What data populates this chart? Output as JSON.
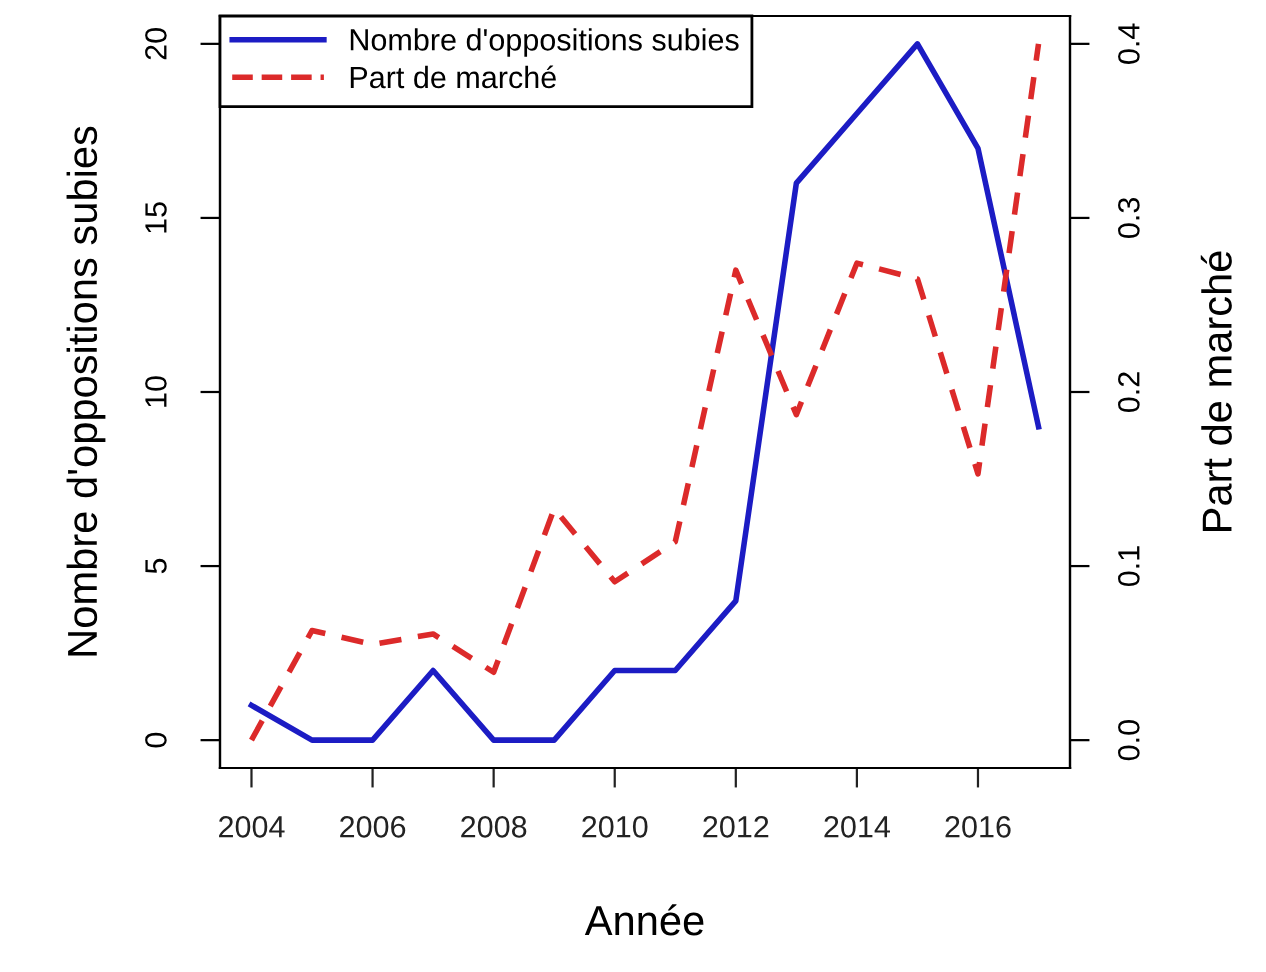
{
  "chart_data": {
    "type": "line",
    "xlabel": "Année",
    "ylabel": "Nombre d'oppositions subies",
    "y2label": "Part de marché",
    "x": [
      2004,
      2005,
      2006,
      2007,
      2008,
      2009,
      2010,
      2011,
      2012,
      2013,
      2014,
      2015,
      2016,
      2017
    ],
    "xlim": [
      2003.48,
      2017.52
    ],
    "xticks": [
      2004,
      2006,
      2008,
      2010,
      2012,
      2014,
      2016
    ],
    "ylim": [
      -0.8,
      20.8
    ],
    "yticks": [
      0,
      5,
      10,
      15,
      20
    ],
    "y2lim": [
      -0.016,
      0.416
    ],
    "y2ticks": [
      {
        "value": 0,
        "label": "0.0"
      },
      0.1,
      0.2,
      0.3,
      0.4
    ],
    "series": [
      {
        "name": "Nombre d'oppositions subies",
        "color": "#1c1cc4",
        "line_style": "solid",
        "values": [
          1,
          0,
          0,
          2,
          0,
          0,
          2,
          2,
          4,
          16,
          18,
          20,
          17,
          9
        ]
      },
      {
        "name": "Part de marché",
        "color": "#dc2a2a",
        "line_style": "dashed",
        "axis": "y2",
        "values": [
          0.0,
          0.063,
          0.055,
          0.061,
          0.039,
          0.133,
          0.091,
          0.114,
          0.27,
          0.187,
          0.274,
          0.265,
          0.153,
          0.4
        ]
      }
    ],
    "legend": "top left",
    "grid": false
  }
}
